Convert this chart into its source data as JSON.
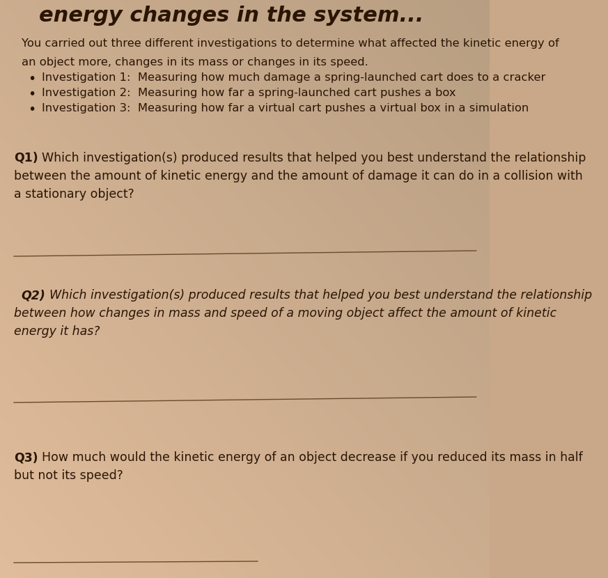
{
  "bg_color_top": "#b8957a",
  "bg_color_mid": "#d4b89a",
  "bg_color_light": "#e8d0b8",
  "page_bg": "#dcc4a8",
  "title": "energy changes in the system...",
  "title_fontsize": 22,
  "title_color": "#2a1505",
  "intro_line1": "You carried out three different investigations to determine what affected the kinetic energy of",
  "intro_line2": "an object more, changes in its mass or changes in its speed.",
  "bullet1": "Investigation 1:  Measuring how much damage a spring-launched cart does to a cracker",
  "bullet2": "Investigation 2:  Measuring how far a spring-launched cart pushes a box",
  "bullet3": "Investigation 3:  Measuring how far a virtual cart pushes a virtual box in a simulation",
  "q1_label": "Q1)",
  "q1_line1": "Which investigation(s) produced results that helped you best understand the relationship",
  "q1_line2": "between the amount of kinetic energy and the amount of damage it can do in a collision with",
  "q1_line3": "a stationary object?",
  "q2_label": "Q2)",
  "q2_line1": "Which investigation(s) produced results that helped you best understand the relationship",
  "q2_line2": "between how changes in mass and speed of a moving object affect the amount of kinetic",
  "q2_line3": "energy it has?",
  "q3_label": "Q3)",
  "q3_line1": "How much would the kinetic energy of an object decrease if you reduced its mass in half",
  "q3_line2": "but not its speed?",
  "text_color": "#2a1505",
  "body_fontsize": 11.8,
  "q_fontsize": 12.5,
  "line_color": "#6a4a2a"
}
